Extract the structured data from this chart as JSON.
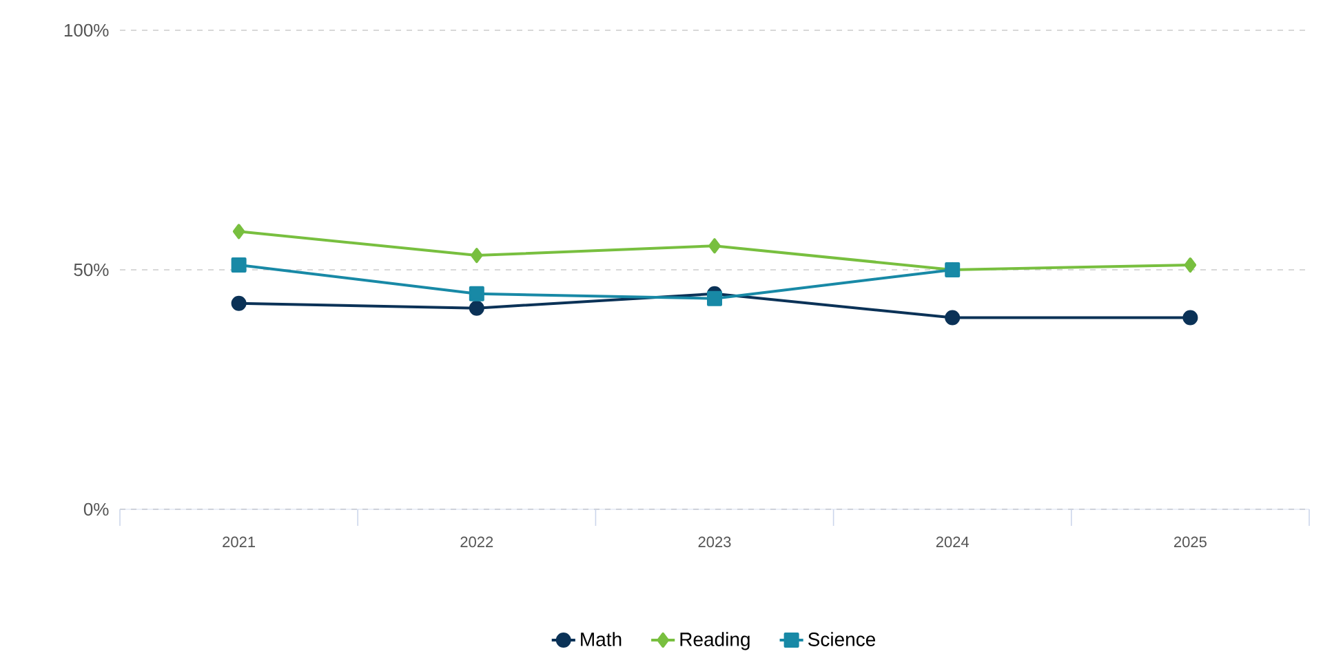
{
  "chart_data": {
    "type": "line",
    "categories": [
      "2021",
      "2022",
      "2023",
      "2024",
      "2025"
    ],
    "series": [
      {
        "name": "Math",
        "color": "#0b3257",
        "marker": "circle",
        "values": [
          43,
          42,
          45,
          40,
          40
        ]
      },
      {
        "name": "Reading",
        "color": "#78bf3f",
        "marker": "diamond",
        "values": [
          58,
          53,
          55,
          50,
          51
        ]
      },
      {
        "name": "Science",
        "color": "#1889a6",
        "marker": "square",
        "values": [
          51,
          45,
          44,
          50,
          null
        ]
      }
    ],
    "ylim": [
      0,
      100
    ],
    "yticks": [
      {
        "value": 0,
        "label": "0%"
      },
      {
        "value": 50,
        "label": "50%"
      },
      {
        "value": 100,
        "label": "100%"
      }
    ],
    "grid": "y",
    "legend": "bottom"
  }
}
